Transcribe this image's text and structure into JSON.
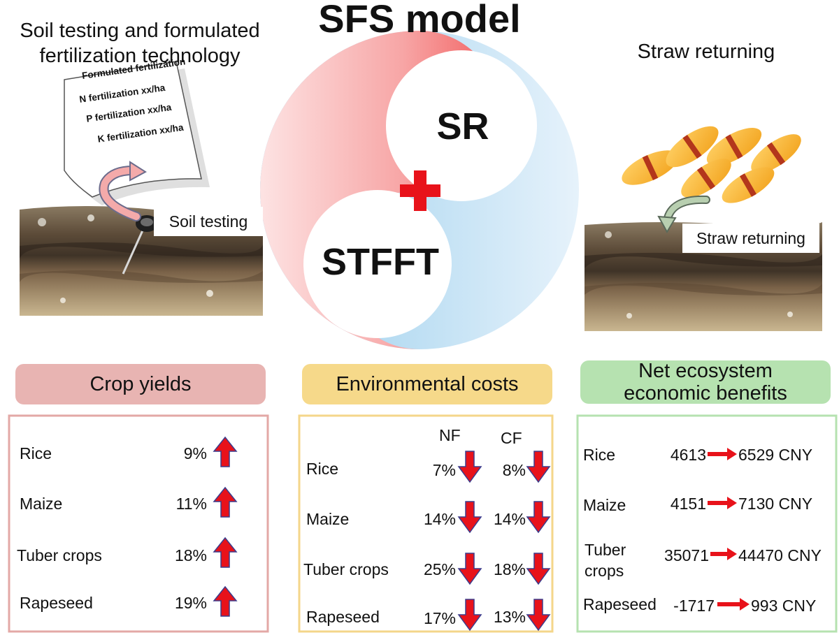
{
  "title": "SFS model",
  "left_title_line1": "Soil testing and formulated",
  "left_title_line2": "fertilization technology",
  "right_title": "Straw returning",
  "paper": {
    "heading": "Formulated fertilization",
    "lines": [
      "N fertilization  xx/ha",
      "P fertilization xx/ha",
      "K fertilization xx/ha"
    ]
  },
  "soil_testing_label": "Soil testing",
  "straw_returning_label": "Straw returning",
  "circle_labels": {
    "top": "SR",
    "bottom": "STFFT"
  },
  "colors": {
    "red": "#f06b6b",
    "blue": "#8fc9ea",
    "arrow": "#e8121a",
    "pink_box": "#e8b4b2",
    "yellow_box": "#f6d98a",
    "green_box": "#b6e2b0"
  },
  "crop_yields": {
    "header": "Crop yields",
    "rows": [
      {
        "crop": "Rice",
        "value": "9%"
      },
      {
        "crop": "Maize",
        "value": "11%"
      },
      {
        "crop": "Tuber crops",
        "value": "18%"
      },
      {
        "crop": "Rapeseed",
        "value": "19%"
      }
    ]
  },
  "environmental_costs": {
    "header": "Environmental costs",
    "col1": "NF",
    "col2": "CF",
    "rows": [
      {
        "crop": "Rice",
        "nf": "7%",
        "cf": "8%"
      },
      {
        "crop": "Maize",
        "nf": "14%",
        "cf": "14%"
      },
      {
        "crop": "Tuber crops",
        "nf": "25%",
        "cf": "18%"
      },
      {
        "crop": "Rapeseed",
        "nf": "17%",
        "cf": "13%"
      }
    ]
  },
  "net_benefits": {
    "header_line1": "Net ecosystem",
    "header_line2": "economic benefits",
    "rows": [
      {
        "crop": "Rice",
        "from": "4613",
        "to": "6529 CNY"
      },
      {
        "crop": "Maize",
        "from": "4151",
        "to": "7130 CNY"
      },
      {
        "crop_line1": "Tuber",
        "crop_line2": "crops",
        "from": "35071",
        "to": "44470 CNY"
      },
      {
        "crop": "Rapeseed",
        "from": "-1717",
        "to": "993 CNY"
      }
    ]
  }
}
